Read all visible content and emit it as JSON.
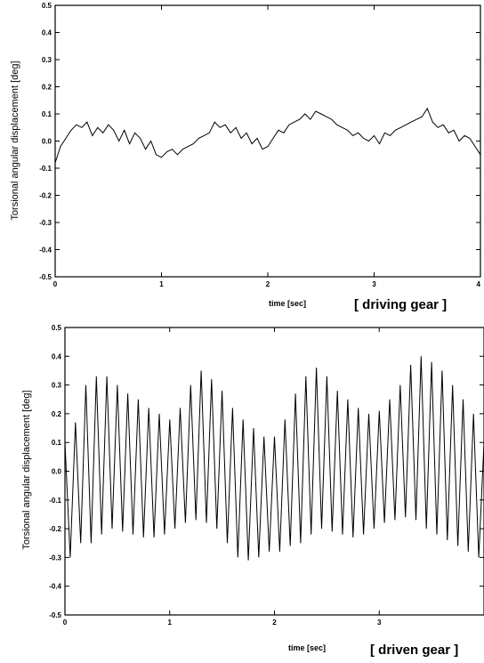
{
  "chart_data": [
    {
      "type": "line",
      "xlabel": "time [sec]",
      "ylabel": "Torsional angular displacement [deg]",
      "caption": "[ driving gear ]",
      "xlim": [
        0,
        4
      ],
      "ylim": [
        -0.5,
        0.5
      ],
      "x_ticks": [
        "0",
        "1",
        "2",
        "3",
        "4"
      ],
      "y_ticks": [
        "0.5",
        "0.4",
        "0.3",
        "0.2",
        "0.1",
        "0.0",
        "-0.1",
        "-0.2",
        "-0.3",
        "-0.4",
        "-0.5"
      ],
      "grid": false,
      "series": [
        {
          "x": [
            0,
            0.05,
            0.1,
            0.15,
            0.2,
            0.25,
            0.3,
            0.35,
            0.4,
            0.45,
            0.5,
            0.55,
            0.6,
            0.65,
            0.7,
            0.75,
            0.8,
            0.85,
            0.9,
            0.95,
            1,
            1.05,
            1.1,
            1.15,
            1.2,
            1.25,
            1.3,
            1.35,
            1.4,
            1.45,
            1.5,
            1.55,
            1.6,
            1.65,
            1.7,
            1.75,
            1.8,
            1.85,
            1.9,
            1.95,
            2,
            2.05,
            2.1,
            2.15,
            2.2,
            2.25,
            2.3,
            2.35,
            2.4,
            2.45,
            2.5,
            2.55,
            2.6,
            2.65,
            2.7,
            2.75,
            2.8,
            2.85,
            2.9,
            2.95,
            3,
            3.05,
            3.1,
            3.15,
            3.2,
            3.25,
            3.3,
            3.35,
            3.4,
            3.45,
            3.5,
            3.55,
            3.6,
            3.65,
            3.7,
            3.75,
            3.8,
            3.85,
            3.9,
            3.95,
            4
          ],
          "y": [
            -0.08,
            -0.02,
            0.01,
            0.04,
            0.06,
            0.05,
            0.07,
            0.02,
            0.05,
            0.03,
            0.06,
            0.04,
            0.0,
            0.04,
            -0.01,
            0.03,
            0.01,
            -0.03,
            0.0,
            -0.05,
            -0.06,
            -0.04,
            -0.03,
            -0.05,
            -0.03,
            -0.02,
            -0.01,
            0.01,
            0.02,
            0.03,
            0.07,
            0.05,
            0.06,
            0.03,
            0.05,
            0.01,
            0.03,
            -0.01,
            0.01,
            -0.03,
            -0.02,
            0.01,
            0.04,
            0.03,
            0.06,
            0.07,
            0.08,
            0.1,
            0.08,
            0.11,
            0.1,
            0.09,
            0.08,
            0.06,
            0.05,
            0.04,
            0.02,
            0.03,
            0.01,
            0.0,
            0.02,
            -0.01,
            0.03,
            0.02,
            0.04,
            0.05,
            0.06,
            0.07,
            0.08,
            0.09,
            0.12,
            0.07,
            0.05,
            0.06,
            0.03,
            0.04,
            0.0,
            0.02,
            0.01,
            -0.02,
            -0.05
          ]
        }
      ]
    },
    {
      "type": "line",
      "xlabel": "time [sec]",
      "ylabel": "Torsional angular displacement  [deg]",
      "caption": "[ driven gear ]",
      "xlim": [
        0,
        4
      ],
      "ylim": [
        -0.5,
        0.5
      ],
      "x_ticks": [
        "0",
        "1",
        "2",
        "3",
        ""
      ],
      "y_ticks": [
        "0.5",
        "0.4",
        "0.3",
        "0.2",
        "0.1",
        "0.0",
        "-0.1",
        "-0.2",
        "-0.3",
        "-0.4",
        "-0.5"
      ],
      "grid": false,
      "series": [
        {
          "x": [
            0,
            0.05,
            0.1,
            0.15,
            0.2,
            0.25,
            0.3,
            0.35,
            0.4,
            0.45,
            0.5,
            0.55,
            0.6,
            0.65,
            0.7,
            0.75,
            0.8,
            0.85,
            0.9,
            0.95,
            1,
            1.05,
            1.1,
            1.15,
            1.2,
            1.25,
            1.3,
            1.35,
            1.4,
            1.45,
            1.5,
            1.55,
            1.6,
            1.65,
            1.7,
            1.75,
            1.8,
            1.85,
            1.9,
            1.95,
            2,
            2.05,
            2.1,
            2.15,
            2.2,
            2.25,
            2.3,
            2.35,
            2.4,
            2.45,
            2.5,
            2.55,
            2.6,
            2.65,
            2.7,
            2.75,
            2.8,
            2.85,
            2.9,
            2.95,
            3,
            3.05,
            3.1,
            3.15,
            3.2,
            3.25,
            3.3,
            3.35,
            3.4,
            3.45,
            3.5,
            3.55,
            3.6,
            3.65,
            3.7,
            3.75,
            3.8,
            3.85,
            3.9,
            3.95,
            4
          ],
          "y": [
            0.1,
            -0.3,
            0.17,
            -0.25,
            0.3,
            -0.25,
            0.33,
            -0.22,
            0.33,
            -0.2,
            0.3,
            -0.21,
            0.27,
            -0.22,
            0.25,
            -0.23,
            0.22,
            -0.23,
            0.2,
            -0.22,
            0.18,
            -0.2,
            0.22,
            -0.18,
            0.3,
            -0.17,
            0.35,
            -0.18,
            0.32,
            -0.2,
            0.28,
            -0.25,
            0.22,
            -0.3,
            0.18,
            -0.31,
            0.15,
            -0.3,
            0.12,
            -0.28,
            0.12,
            -0.28,
            0.18,
            -0.26,
            0.27,
            -0.25,
            0.33,
            -0.22,
            0.36,
            -0.2,
            0.33,
            -0.21,
            0.28,
            -0.22,
            0.25,
            -0.23,
            0.22,
            -0.22,
            0.2,
            -0.2,
            0.21,
            -0.18,
            0.25,
            -0.17,
            0.3,
            -0.16,
            0.37,
            -0.17,
            0.4,
            -0.2,
            0.38,
            -0.22,
            0.35,
            -0.24,
            0.3,
            -0.26,
            0.25,
            -0.28,
            0.2,
            -0.3,
            0.1
          ]
        }
      ]
    }
  ]
}
